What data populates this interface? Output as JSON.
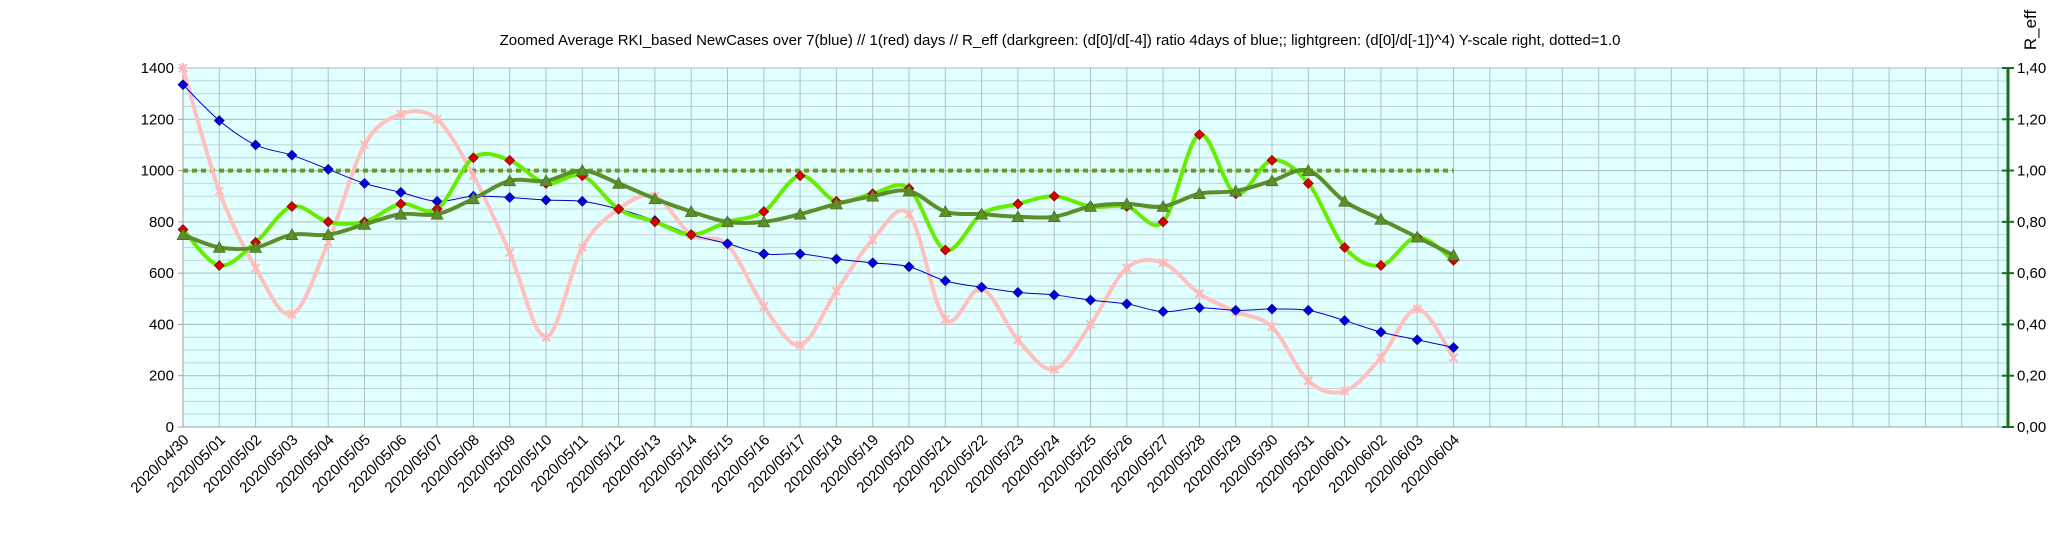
{
  "chart_data": {
    "type": "line",
    "title": "Zoomed Average RKI_based NewCases over 7(blue) // 1(red) days //  R_eff (darkgreen: (d[0]/d[-4]) ratio 4days of blue;; lightgreen: (d[0]/d[-1])^4) Y-scale right, dotted=1.0",
    "ylabel_right": "R_eff",
    "ylim_left": [
      0,
      1400
    ],
    "ylim_right": [
      0,
      1.4
    ],
    "yticks_left": [
      "0",
      "200",
      "400",
      "600",
      "800",
      "1000",
      "1200",
      "1400"
    ],
    "yticks_right": [
      "0,00",
      "0,20",
      "0,40",
      "0,60",
      "0,80",
      "1,00",
      "1,20",
      "1,40"
    ],
    "grid": true,
    "reference_line": 1.0,
    "categories": [
      "2020/04/30",
      "2020/05/01",
      "2020/05/02",
      "2020/05/03",
      "2020/05/04",
      "2020/05/05",
      "2020/05/06",
      "2020/05/07",
      "2020/05/08",
      "2020/05/09",
      "2020/05/10",
      "2020/05/11",
      "2020/05/12",
      "2020/05/13",
      "2020/05/14",
      "2020/05/15",
      "2020/05/16",
      "2020/05/17",
      "2020/05/18",
      "2020/05/19",
      "2020/05/20",
      "2020/05/21",
      "2020/05/22",
      "2020/05/23",
      "2020/05/24",
      "2020/05/25",
      "2020/05/26",
      "2020/05/27",
      "2020/05/28",
      "2020/05/29",
      "2020/05/30",
      "2020/05/31",
      "2020/06/01",
      "2020/06/02",
      "2020/06/03",
      "2020/06/04"
    ],
    "series": [
      {
        "color": "#0000cc",
        "axis": "left",
        "marker": "diamond",
        "values": [
          1335,
          1195,
          1100,
          1060,
          1005,
          950,
          915,
          880,
          900,
          895,
          885,
          880,
          850,
          805,
          750,
          715,
          675,
          675,
          655,
          640,
          625,
          570,
          545,
          525,
          515,
          495,
          480,
          450,
          465,
          455,
          460,
          455,
          415,
          370,
          340,
          310
        ]
      },
      {
        "color": "#ffc0c0",
        "axis": "left",
        "marker": "star",
        "values": [
          1400,
          920,
          620,
          440,
          720,
          1100,
          1220,
          1200,
          980,
          680,
          350,
          700,
          850,
          900,
          750,
          710,
          470,
          320,
          530,
          730,
          830,
          420,
          540,
          340,
          225,
          400,
          620,
          640,
          520,
          450,
          390,
          180,
          140,
          270,
          460,
          270
        ]
      },
      {
        "color": "#66ee00",
        "axis": "right",
        "marker": "diamond-red",
        "values": [
          0.77,
          0.63,
          0.72,
          0.86,
          0.8,
          0.8,
          0.87,
          0.85,
          1.05,
          1.04,
          0.95,
          0.98,
          0.85,
          0.8,
          0.75,
          0.8,
          0.84,
          0.98,
          0.88,
          0.91,
          0.93,
          0.69,
          0.83,
          0.87,
          0.9,
          0.86,
          0.86,
          0.8,
          1.14,
          0.91,
          1.04,
          0.95,
          0.7,
          0.63,
          0.74,
          0.65
        ]
      },
      {
        "color": "#5a8f2a",
        "axis": "right",
        "marker": "triangle",
        "values": [
          0.75,
          0.7,
          0.7,
          0.75,
          0.75,
          0.79,
          0.83,
          0.83,
          0.89,
          0.96,
          0.96,
          1.0,
          0.95,
          0.89,
          0.84,
          0.8,
          0.8,
          0.83,
          0.87,
          0.9,
          0.92,
          0.84,
          0.83,
          0.82,
          0.82,
          0.86,
          0.87,
          0.86,
          0.91,
          0.92,
          0.96,
          1.0,
          0.88,
          0.81,
          0.74,
          0.67
        ]
      }
    ]
  }
}
